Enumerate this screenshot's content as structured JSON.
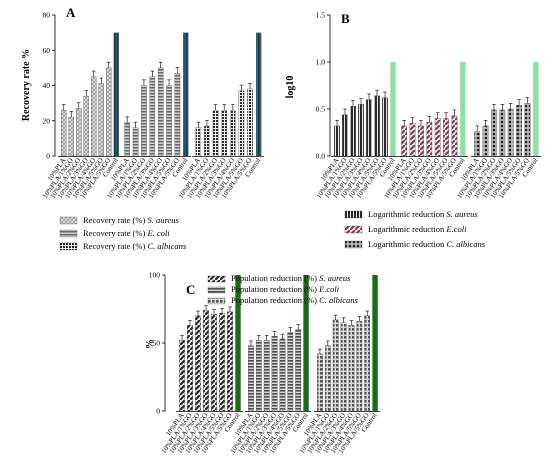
{
  "chart_data": [
    {
      "type": "bar",
      "panel_letter": "A",
      "ylabel": "Recovery rate %",
      "ylim": [
        0,
        80
      ],
      "yticks": [
        "0",
        "20",
        "40",
        "60",
        "80"
      ],
      "categories": [
        "10%PLA",
        "1%GO",
        "2%GO",
        "3%GO",
        "4%GO",
        "5%GO",
        "10%PLA/5%GO",
        "Control"
      ],
      "category_labels_printed": [
        "10%PLA",
        "10%PLA/1%GO",
        "10%PLA/2%GO",
        "10%PLA/3%GO",
        "10%PLA/4%GO",
        "10%PLA/5%GO",
        "10%PLA/5%GO",
        "Control"
      ],
      "series": [
        {
          "name_prefix": "Recovery rate (%) ",
          "name_organism": "S. aureus",
          "values": [
            26,
            22,
            27,
            34,
            45,
            41,
            50,
            70
          ]
        },
        {
          "name_prefix": "Recovery rate (%) ",
          "name_organism": "E. coli",
          "values": [
            19,
            16,
            40,
            45,
            50,
            40,
            47,
            70
          ]
        },
        {
          "name_prefix": "Recovery rate (%) ",
          "name_organism": "C. albicans",
          "values": [
            16,
            17,
            26,
            26,
            26,
            37,
            38,
            70
          ]
        }
      ],
      "legend_position": "bottom"
    },
    {
      "type": "bar",
      "panel_letter": "B",
      "ylabel": "log10",
      "ylim": [
        0,
        1.5
      ],
      "yticks": [
        "0.0",
        "0.5",
        "1.0",
        "1.5"
      ],
      "categories": [
        "10%PLA",
        "1%GO",
        "2%GO",
        "3%GO",
        "4%GO",
        "5%GO",
        "10%PLA/5%GO",
        "Control"
      ],
      "category_labels_printed": [
        "10%PLA",
        "10%PLA/1%GO",
        "10%PLA/2%GO",
        "10%PLA/3%GO",
        "10%PLA/4%GO",
        "10%PLA/5%GO",
        "10%PLA/5%GO",
        "Control"
      ],
      "series": [
        {
          "name_prefix": "Logarithmic reduction ",
          "name_organism": "S. aureus",
          "values": [
            0.32,
            0.44,
            0.53,
            0.55,
            0.6,
            0.64,
            0.62,
            1.0
          ]
        },
        {
          "name_prefix": "Logarithmic reduction ",
          "name_organism": "E.coli",
          "values": [
            0.32,
            0.35,
            0.32,
            0.36,
            0.4,
            0.4,
            0.43,
            1.0
          ]
        },
        {
          "name_prefix": "Logarithmic reduction ",
          "name_organism": "C. albicans",
          "values": [
            0.26,
            0.32,
            0.49,
            0.49,
            0.5,
            0.54,
            0.56,
            1.0
          ]
        }
      ],
      "legend_position": "bottom"
    },
    {
      "type": "bar",
      "panel_letter": "C",
      "ylabel": "%",
      "ylim": [
        0,
        100
      ],
      "yticks": [
        "0",
        "50",
        "100"
      ],
      "categories": [
        "10%PLA",
        "1%GO",
        "2%GO",
        "3%GO",
        "4%GO",
        "5%GO",
        "10%PLA/5%GO",
        "Control"
      ],
      "category_labels_printed": [
        "10%PLA",
        "10%PLA/1%GO",
        "10%PLA/2%GO",
        "10%PLA/3%GO",
        "10%PLA/4%GO",
        "10%PLA/5%GO",
        "10%PLA/5%GO",
        "Control"
      ],
      "series": [
        {
          "name_prefix": "Population reduction (%) ",
          "name_organism": "S. aureus",
          "values": [
            52,
            63,
            70,
            74,
            71,
            72,
            73,
            100
          ]
        },
        {
          "name_prefix": "Population reduction (%) ",
          "name_organism": "E.coli",
          "values": [
            48,
            52,
            52,
            55,
            53,
            58,
            60,
            100
          ]
        },
        {
          "name_prefix": "Population reduction (%) ",
          "name_organism": "C. albicans",
          "values": [
            42,
            48,
            67,
            65,
            63,
            66,
            70,
            100
          ]
        }
      ],
      "legend_position": "top-right"
    }
  ],
  "colors": {
    "A": [
      "#b9b9b9",
      "#8f8f8f",
      "#383838",
      "#1f4c5a"
    ],
    "B": [
      "#3a3a3a",
      "#7a5262",
      "#444444",
      "#8fe0a8"
    ],
    "C": [
      "#3a3a3a",
      "#5f5f5f",
      "#6f6f6f",
      "#166d12"
    ]
  }
}
